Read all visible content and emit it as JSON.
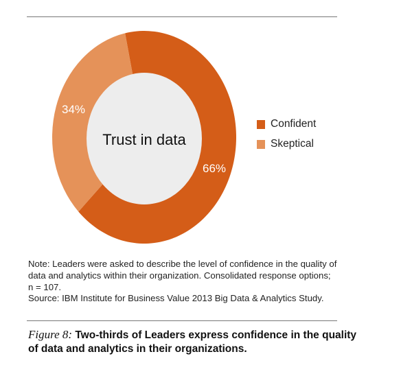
{
  "chart_data": {
    "type": "pie",
    "donut": true,
    "center_label": "Trust in data",
    "categories": [
      "Confident",
      "Skeptical"
    ],
    "values": [
      66,
      34
    ],
    "data_labels": [
      "66%",
      "34%"
    ],
    "colors": [
      "#d45d18",
      "#e59259"
    ],
    "center_color": "#ededed",
    "legend": {
      "placement": "right",
      "entries": [
        "Confident",
        "Skeptical"
      ]
    }
  },
  "note": {
    "lines": [
      "Note: Leaders were asked to describe the level of confidence in the quality of data and analytics within their organization. Consolidated response options;",
      "n = 107.",
      "Source: IBM Institute for Business Value 2013 Big Data & Analytics Study."
    ]
  },
  "caption": {
    "figure_label": "Figure 8:",
    "text": " Two-thirds of Leaders express confidence in the quality of data and analytics in their organizations."
  }
}
